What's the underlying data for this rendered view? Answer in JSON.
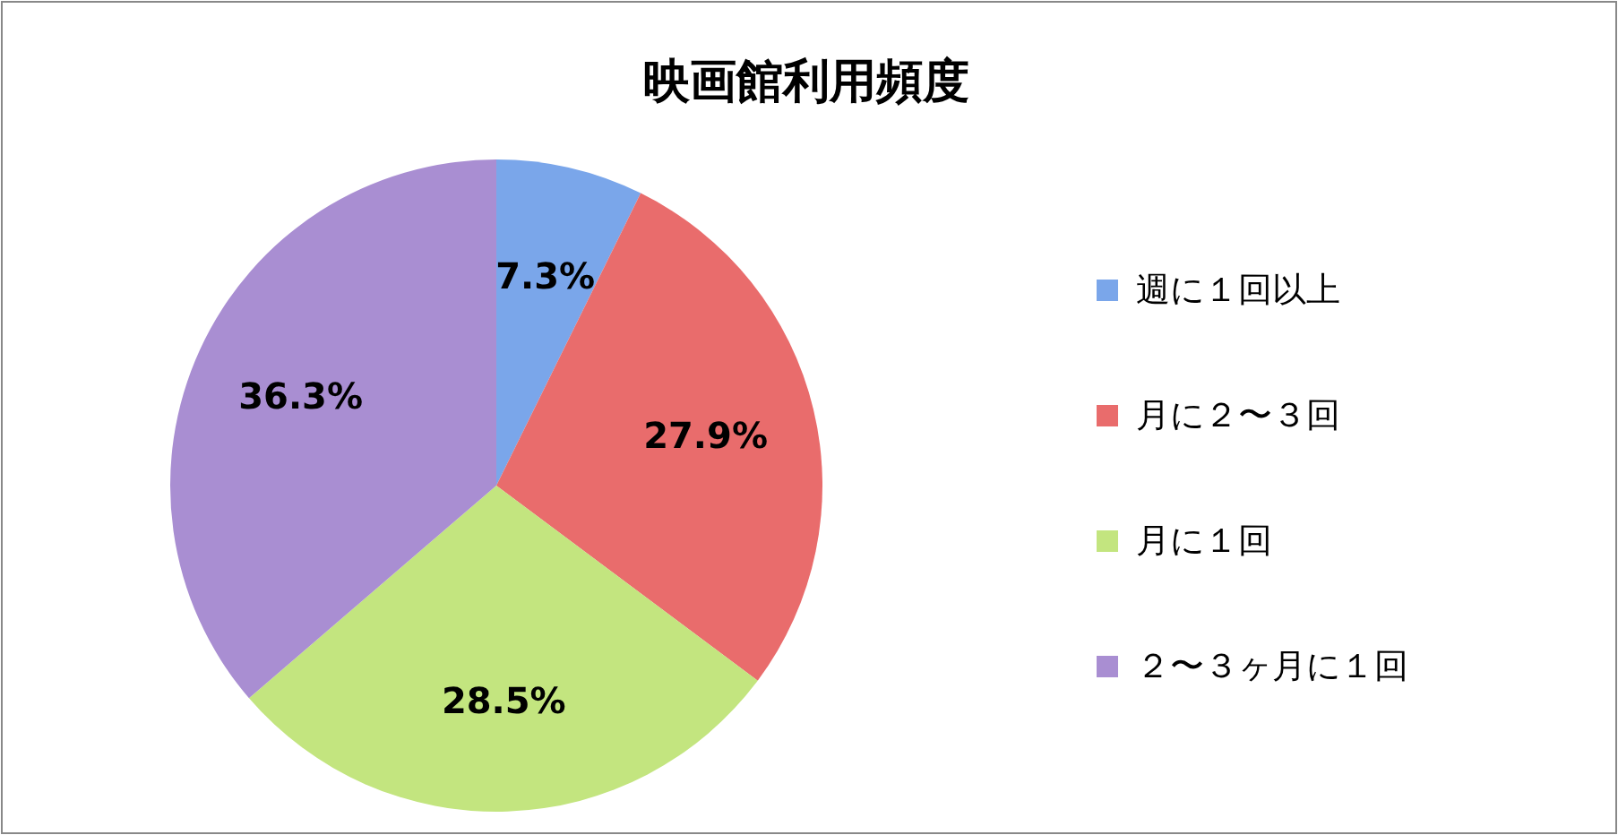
{
  "chart_data": {
    "type": "pie",
    "title": "映画館利用頻度",
    "categories": [
      "週に１回以上",
      "月に２〜３回",
      "月に１回",
      "２〜３ヶ月に１回"
    ],
    "values": [
      7.3,
      27.9,
      28.5,
      36.3
    ],
    "colors": [
      "#7aa6ea",
      "#e96c6c",
      "#c3e57f",
      "#a98ed2"
    ],
    "value_labels": [
      "7.3%",
      "27.9%",
      "28.5%",
      "36.3%"
    ],
    "legend": "right"
  }
}
